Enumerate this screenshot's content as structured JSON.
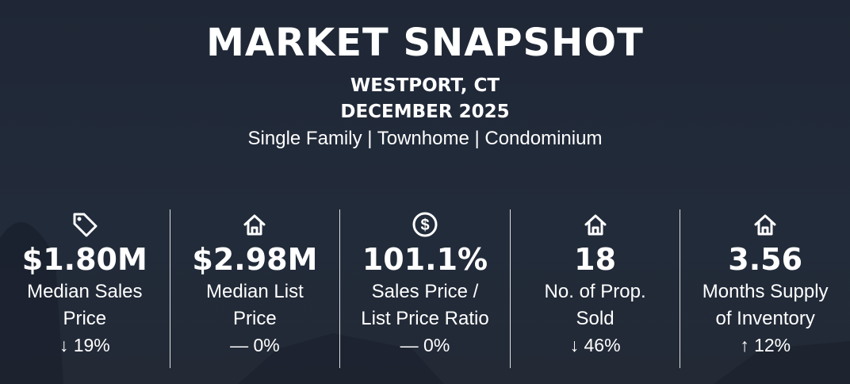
{
  "header": {
    "title": "MARKET SNAPSHOT",
    "location": "WESTPORT, CT",
    "period": "DECEMBER 2025",
    "property_types": "Single Family | Townhome | Condominium"
  },
  "colors": {
    "background": "#212a38",
    "text": "#ffffff"
  },
  "stats": [
    {
      "icon": "price-tag-icon",
      "value": "$1.80M",
      "label_line1": "Median Sales",
      "label_line2": "Price",
      "change": "↓ 19%"
    },
    {
      "icon": "house-icon",
      "value": "$2.98M",
      "label_line1": "Median List",
      "label_line2": "Price",
      "change": "— 0%"
    },
    {
      "icon": "dollar-circle-icon",
      "value": "101.1%",
      "label_line1": "Sales Price /",
      "label_line2": "List Price Ratio",
      "change": "— 0%"
    },
    {
      "icon": "house-icon",
      "value": "18",
      "label_line1": "No. of Prop.",
      "label_line2": "Sold",
      "change": "↓ 46%"
    },
    {
      "icon": "house-icon",
      "value": "3.56",
      "label_line1": "Months Supply",
      "label_line2": "of Inventory",
      "change": "↑ 12%"
    }
  ]
}
